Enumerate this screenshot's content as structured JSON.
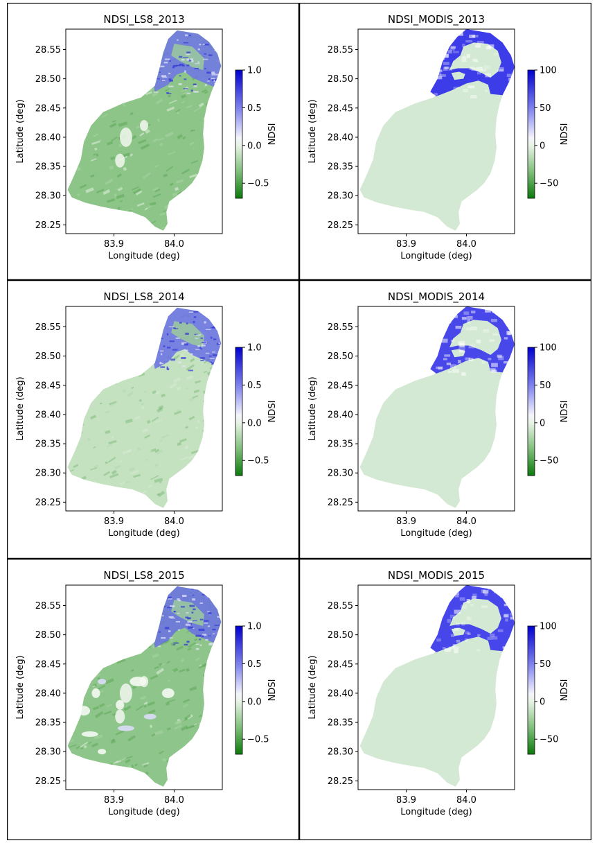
{
  "chart_data": [
    {
      "type": "heatmap",
      "title": "NDSI_LS8_2013",
      "xlabel": "Longitude (deg)",
      "ylabel": "Latitude (deg)",
      "xlim": [
        83.82,
        84.08
      ],
      "ylim": [
        28.235,
        28.585
      ],
      "xticks": [
        {
          "v": 83.9,
          "label": "83.9"
        },
        {
          "v": 84.0,
          "label": "84.0"
        }
      ],
      "yticks": [
        {
          "v": 28.25,
          "label": "28.25"
        },
        {
          "v": 28.3,
          "label": "28.30"
        },
        {
          "v": 28.35,
          "label": "28.35"
        },
        {
          "v": 28.4,
          "label": "28.40"
        },
        {
          "v": 28.45,
          "label": "28.45"
        },
        {
          "v": 28.5,
          "label": "28.50"
        },
        {
          "v": 28.55,
          "label": "28.55"
        }
      ],
      "colorbar": {
        "label": "NDSI",
        "range": [
          -0.7,
          1.0
        ],
        "ticks": [
          {
            "v": 1.0,
            "label": "1.0"
          },
          {
            "v": 0.5,
            "label": "0.5"
          },
          {
            "v": 0.0,
            "label": "0.0"
          },
          {
            "v": -0.5,
            "label": "−0.5"
          }
        ]
      },
      "map_fill": "#8cc587",
      "snow_fill": "#6e74e6",
      "snow_extent": "north-east ridge, lat 28.47–28.585"
    },
    {
      "type": "heatmap",
      "title": "NDSI_MODIS_2013",
      "xlabel": "Longitude (deg)",
      "ylabel": "Latitude (deg)",
      "xlim": [
        83.82,
        84.08
      ],
      "ylim": [
        28.235,
        28.585
      ],
      "xticks": [
        {
          "v": 83.9,
          "label": "83.9"
        },
        {
          "v": 84.0,
          "label": "84.0"
        }
      ],
      "yticks": [
        {
          "v": 28.25,
          "label": "28.25"
        },
        {
          "v": 28.3,
          "label": "28.30"
        },
        {
          "v": 28.35,
          "label": "28.35"
        },
        {
          "v": 28.4,
          "label": "28.40"
        },
        {
          "v": 28.45,
          "label": "28.45"
        },
        {
          "v": 28.5,
          "label": "28.50"
        },
        {
          "v": 28.55,
          "label": "28.55"
        }
      ],
      "colorbar": {
        "label": "NDSI",
        "range": [
          -70,
          100
        ],
        "ticks": [
          {
            "v": 100,
            "label": "100"
          },
          {
            "v": 50,
            "label": "50"
          },
          {
            "v": 0,
            "label": "0"
          },
          {
            "v": -50,
            "label": "−50"
          }
        ]
      },
      "map_fill": "#d3e9d3",
      "snow_fill": "#3c3ce8",
      "snow_extent": "horseshoe band around north ridge"
    },
    {
      "type": "heatmap",
      "title": "NDSI_LS8_2014",
      "xlabel": "Longitude (deg)",
      "ylabel": "Latitude (deg)",
      "xlim": [
        83.82,
        84.08
      ],
      "ylim": [
        28.235,
        28.585
      ],
      "xticks": [
        {
          "v": 83.9,
          "label": "83.9"
        },
        {
          "v": 84.0,
          "label": "84.0"
        }
      ],
      "yticks": [
        {
          "v": 28.25,
          "label": "28.25"
        },
        {
          "v": 28.3,
          "label": "28.30"
        },
        {
          "v": 28.35,
          "label": "28.35"
        },
        {
          "v": 28.4,
          "label": "28.40"
        },
        {
          "v": 28.45,
          "label": "28.45"
        },
        {
          "v": 28.5,
          "label": "28.50"
        },
        {
          "v": 28.55,
          "label": "28.55"
        }
      ],
      "colorbar": {
        "label": "NDSI",
        "range": [
          -0.7,
          1.0
        ],
        "ticks": [
          {
            "v": 1.0,
            "label": "1.0"
          },
          {
            "v": 0.5,
            "label": "0.5"
          },
          {
            "v": 0.0,
            "label": "0.0"
          },
          {
            "v": -0.5,
            "label": "−0.5"
          }
        ]
      },
      "map_fill": "#c4e1c0",
      "snow_fill": "#6a70e4",
      "snow_extent": "north-east ridge, lat 28.47–28.585"
    },
    {
      "type": "heatmap",
      "title": "NDSI_MODIS_2014",
      "xlabel": "Longitude (deg)",
      "ylabel": "Latitude (deg)",
      "xlim": [
        83.82,
        84.08
      ],
      "ylim": [
        28.235,
        28.585
      ],
      "xticks": [
        {
          "v": 83.9,
          "label": "83.9"
        },
        {
          "v": 84.0,
          "label": "84.0"
        }
      ],
      "yticks": [
        {
          "v": 28.25,
          "label": "28.25"
        },
        {
          "v": 28.3,
          "label": "28.30"
        },
        {
          "v": 28.35,
          "label": "28.35"
        },
        {
          "v": 28.4,
          "label": "28.40"
        },
        {
          "v": 28.45,
          "label": "28.45"
        },
        {
          "v": 28.5,
          "label": "28.50"
        },
        {
          "v": 28.55,
          "label": "28.55"
        }
      ],
      "colorbar": {
        "label": "NDSI",
        "range": [
          -70,
          100
        ],
        "ticks": [
          {
            "v": 100,
            "label": "100"
          },
          {
            "v": 50,
            "label": "50"
          },
          {
            "v": 0,
            "label": "0"
          },
          {
            "v": -50,
            "label": "−50"
          }
        ]
      },
      "map_fill": "#d3e9d3",
      "snow_fill": "#4848ea",
      "snow_extent": "horseshoe band around north ridge"
    },
    {
      "type": "heatmap",
      "title": "NDSI_LS8_2015",
      "xlabel": "Longitude (deg)",
      "ylabel": "Latitude (deg)",
      "xlim": [
        83.82,
        84.08
      ],
      "ylim": [
        28.235,
        28.585
      ],
      "xticks": [
        {
          "v": 83.9,
          "label": "83.9"
        },
        {
          "v": 84.0,
          "label": "84.0"
        }
      ],
      "yticks": [
        {
          "v": 28.25,
          "label": "28.25"
        },
        {
          "v": 28.3,
          "label": "28.30"
        },
        {
          "v": 28.35,
          "label": "28.35"
        },
        {
          "v": 28.4,
          "label": "28.40"
        },
        {
          "v": 28.45,
          "label": "28.45"
        },
        {
          "v": 28.5,
          "label": "28.50"
        },
        {
          "v": 28.55,
          "label": "28.55"
        }
      ],
      "colorbar": {
        "label": "NDSI",
        "range": [
          -0.7,
          1.0
        ],
        "ticks": [
          {
            "v": 1.0,
            "label": "1.0"
          },
          {
            "v": 0.5,
            "label": "0.5"
          },
          {
            "v": 0.0,
            "label": "0.0"
          },
          {
            "v": -0.5,
            "label": "−0.5"
          }
        ]
      },
      "map_fill": "#8ec58a",
      "snow_fill": "#6a70e4",
      "snow_extent": "north-east ridge plus scattered white cloud/snow patches"
    },
    {
      "type": "heatmap",
      "title": "NDSI_MODIS_2015",
      "xlabel": "Longitude (deg)",
      "ylabel": "Latitude (deg)",
      "xlim": [
        83.82,
        84.08
      ],
      "ylim": [
        28.235,
        28.585
      ],
      "xticks": [
        {
          "v": 83.9,
          "label": "83.9"
        },
        {
          "v": 84.0,
          "label": "84.0"
        }
      ],
      "yticks": [
        {
          "v": 28.25,
          "label": "28.25"
        },
        {
          "v": 28.3,
          "label": "28.30"
        },
        {
          "v": 28.35,
          "label": "28.35"
        },
        {
          "v": 28.4,
          "label": "28.40"
        },
        {
          "v": 28.45,
          "label": "28.45"
        },
        {
          "v": 28.5,
          "label": "28.50"
        },
        {
          "v": 28.55,
          "label": "28.55"
        }
      ],
      "colorbar": {
        "label": "NDSI",
        "range": [
          -70,
          100
        ],
        "ticks": [
          {
            "v": 100,
            "label": "100"
          },
          {
            "v": 50,
            "label": "50"
          },
          {
            "v": 0,
            "label": "0"
          },
          {
            "v": -50,
            "label": "−50"
          }
        ]
      },
      "map_fill": "#d3e9d3",
      "snow_fill": "#4646ea",
      "snow_extent": "horseshoe band around north ridge"
    }
  ]
}
